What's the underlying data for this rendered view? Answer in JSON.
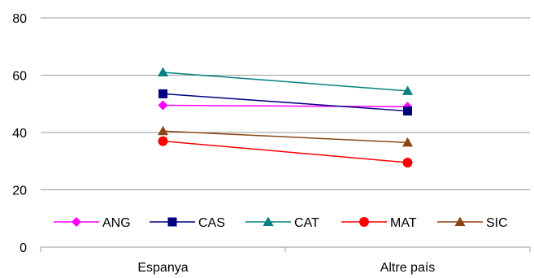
{
  "chart_data": {
    "type": "line",
    "categories": [
      "Espanya",
      "Altre país"
    ],
    "ylim": [
      0,
      80
    ],
    "yticks": [
      0,
      20,
      40,
      60,
      80
    ],
    "grid": true,
    "legend_position": "bottom-inside",
    "series": [
      {
        "name": "ANG",
        "values": [
          49.5,
          49
        ],
        "color": "#FF00FF",
        "marker": "diamond"
      },
      {
        "name": "CAS",
        "values": [
          53.5,
          47.5
        ],
        "color": "#000080",
        "marker": "square"
      },
      {
        "name": "CAT",
        "values": [
          61,
          54.5
        ],
        "color": "#008080",
        "marker": "triangle"
      },
      {
        "name": "MAT",
        "values": [
          37,
          29.5
        ],
        "color": "#FF0000",
        "marker": "circle"
      },
      {
        "name": "SIC",
        "values": [
          40.5,
          36.5
        ],
        "color": "#8B4513",
        "marker": "triangle"
      }
    ]
  }
}
